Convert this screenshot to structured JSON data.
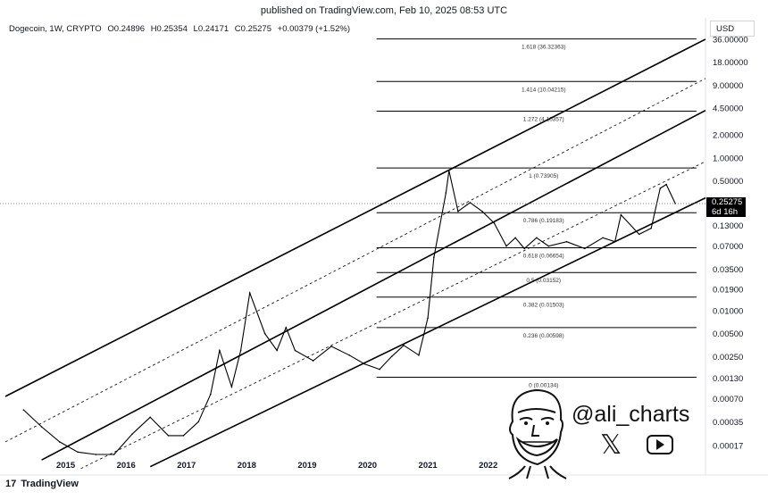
{
  "header": {
    "published": "published on TradingView.com, Feb 10, 2025 08:53 UTC"
  },
  "legend": {
    "symbol": "Dogecoin, 1W, CRYPTO",
    "open": "O0.24896",
    "high": "H0.25354",
    "low": "L0.24171",
    "close": "C0.25275",
    "change": "+0.00379 (+1.52%)"
  },
  "currency": "USD",
  "last_price": {
    "value": "0.25275",
    "countdown": "6d 16h"
  },
  "brand": {
    "logo": "17",
    "name": "TradingView"
  },
  "watermark": {
    "handle": "@ali_charts",
    "icons": [
      "mascot-face-icon",
      "x-logo-icon",
      "youtube-play-icon"
    ]
  },
  "colors": {
    "line": "#000000",
    "candle": "#000000",
    "background": "#ffffff"
  },
  "chart_data": {
    "type": "line",
    "title": "",
    "xlabel": "",
    "ylabel": "",
    "scale": "log",
    "x_ticks": [
      "2015",
      "2016",
      "2017",
      "2018",
      "2019",
      "2020",
      "2021",
      "2022"
    ],
    "y_ticks": [
      "36.00000",
      "18.00000",
      "9.00000",
      "4.50000",
      "2.00000",
      "1.00000",
      "0.50000",
      "0.25275",
      "0.13000",
      "0.07000",
      "0.03500",
      "0.01900",
      "0.01000",
      "0.00500",
      "0.00250",
      "0.00130",
      "0.00070",
      "0.00035",
      "0.00017"
    ],
    "ylim": [
      0.00012,
      40
    ],
    "series": [
      {
        "values": [
          [
            2014.3,
            0.0005
          ],
          [
            2014.6,
            0.0003
          ],
          [
            2014.9,
            0.00019
          ],
          [
            2015.2,
            0.00014
          ],
          [
            2015.5,
            0.00013
          ],
          [
            2015.8,
            0.00013
          ],
          [
            2016.1,
            0.00024
          ],
          [
            2016.4,
            0.0004
          ],
          [
            2016.7,
            0.00023
          ],
          [
            2016.95,
            0.00023
          ],
          [
            2017.2,
            0.00035
          ],
          [
            2017.4,
            0.0008
          ],
          [
            2017.55,
            0.003
          ],
          [
            2017.75,
            0.001
          ],
          [
            2017.9,
            0.003
          ],
          [
            2018.05,
            0.017
          ],
          [
            2018.3,
            0.005
          ],
          [
            2018.5,
            0.003
          ],
          [
            2018.65,
            0.006
          ],
          [
            2018.8,
            0.003
          ],
          [
            2019.1,
            0.0022
          ],
          [
            2019.4,
            0.0034
          ],
          [
            2019.7,
            0.0026
          ],
          [
            2019.95,
            0.002
          ],
          [
            2020.2,
            0.0017
          ],
          [
            2020.4,
            0.0025
          ],
          [
            2020.6,
            0.0035
          ],
          [
            2020.85,
            0.0026
          ],
          [
            2021.0,
            0.008
          ],
          [
            2021.1,
            0.05
          ],
          [
            2021.3,
            0.35
          ],
          [
            2021.35,
            0.68
          ],
          [
            2021.5,
            0.2
          ],
          [
            2021.7,
            0.26
          ],
          [
            2021.9,
            0.2
          ],
          [
            2022.1,
            0.14
          ],
          [
            2022.3,
            0.07
          ],
          [
            2022.45,
            0.09
          ],
          [
            2022.6,
            0.065
          ],
          [
            2022.8,
            0.09
          ],
          [
            2023.0,
            0.07
          ],
          [
            2023.3,
            0.08
          ],
          [
            2023.6,
            0.065
          ],
          [
            2023.9,
            0.09
          ],
          [
            2024.1,
            0.08
          ],
          [
            2024.2,
            0.18
          ],
          [
            2024.5,
            0.1
          ],
          [
            2024.7,
            0.12
          ],
          [
            2024.85,
            0.4
          ],
          [
            2024.95,
            0.45
          ],
          [
            2025.1,
            0.25275
          ]
        ]
      }
    ],
    "fib_levels": [
      {
        "label": "1.618 (36.32363)",
        "value": 36.32363
      },
      {
        "label": "1.414 (10.04215)",
        "value": 10.04215
      },
      {
        "label": "1.272 (4.10357)",
        "value": 4.10357
      },
      {
        "label": "1 (0.73905)",
        "value": 0.73905
      },
      {
        "label": "0.786 (0.19183)",
        "value": 0.19183
      },
      {
        "label": "0.618 (0.06654)",
        "value": 0.06654
      },
      {
        "label": "0.5 (0.03152)",
        "value": 0.03152
      },
      {
        "label": "0.382 (0.01503)",
        "value": 0.01503
      },
      {
        "label": "0.236 (0.00598)",
        "value": 0.00598
      },
      {
        "label": "0 (0.00134)",
        "value": 0.00134
      }
    ],
    "fib_range": [
      2020.15,
      2025.45
    ],
    "channel_lines": [
      {
        "style": "solid",
        "from": [
          2014.0,
          0.00075
        ],
        "to": [
          2025.6,
          36
        ]
      },
      {
        "style": "dashed",
        "from": [
          2014.0,
          0.00019
        ],
        "to": [
          2025.6,
          11
        ]
      },
      {
        "style": "solid",
        "from": [
          2014.6,
          0.00011
        ],
        "to": [
          2025.6,
          4.2
        ]
      },
      {
        "style": "dashed",
        "from": [
          2015.25,
          8.5e-05
        ],
        "to": [
          2025.6,
          0.9
        ]
      },
      {
        "style": "solid",
        "from": [
          2016.4,
          9e-05
        ],
        "to": [
          2025.6,
          0.3
        ]
      }
    ],
    "grid": false,
    "legend": "top-left"
  }
}
